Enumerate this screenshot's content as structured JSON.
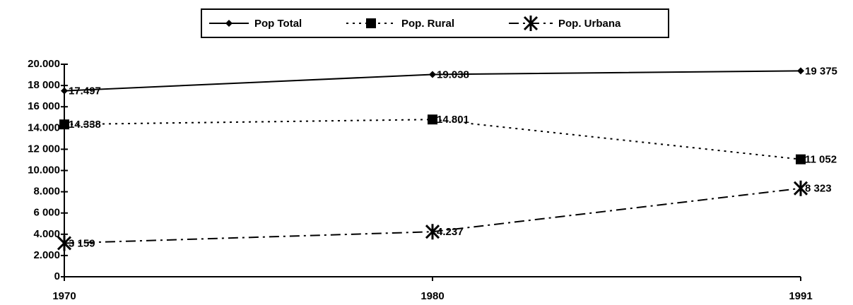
{
  "chart_data": {
    "type": "line",
    "categories": [
      "1970",
      "1980",
      "1991"
    ],
    "series": [
      {
        "name": "Pop Total",
        "color": "#000000",
        "dash": "solid",
        "marker": "diamond",
        "values": [
          17497,
          19038,
          19375
        ],
        "value_labels": [
          "17.497",
          "19.038",
          "19 375"
        ]
      },
      {
        "name": "Pop. Rural",
        "color": "#000000",
        "dash": "dotted",
        "marker": "square",
        "values": [
          14338,
          14801,
          11052
        ],
        "value_labels": [
          "14.338",
          "14.801",
          "11 052"
        ]
      },
      {
        "name": "Pop. Urbana",
        "color": "#000000",
        "dash": "dashdot",
        "marker": "asterisk",
        "values": [
          3159,
          4237,
          8323
        ],
        "value_labels": [
          "3 159",
          "4.237",
          "8 323"
        ]
      }
    ],
    "ylim": [
      0,
      20000
    ],
    "yticks": [
      0,
      {
        "value": 2000,
        "label": "2.000"
      },
      {
        "value": 4000,
        "label": "4.000"
      },
      {
        "value": 6000,
        "label": "6 000"
      },
      {
        "value": 8000,
        "label": "8.000"
      },
      {
        "value": 10000,
        "label": "10.000"
      },
      {
        "value": 12000,
        "label": "12 000"
      },
      {
        "value": 14000,
        "label": "14.000"
      },
      {
        "value": 16000,
        "label": "16 000"
      },
      {
        "value": 18000,
        "label": "18 000"
      },
      {
        "value": 20000,
        "label": "20.000"
      }
    ],
    "legend": "top"
  }
}
